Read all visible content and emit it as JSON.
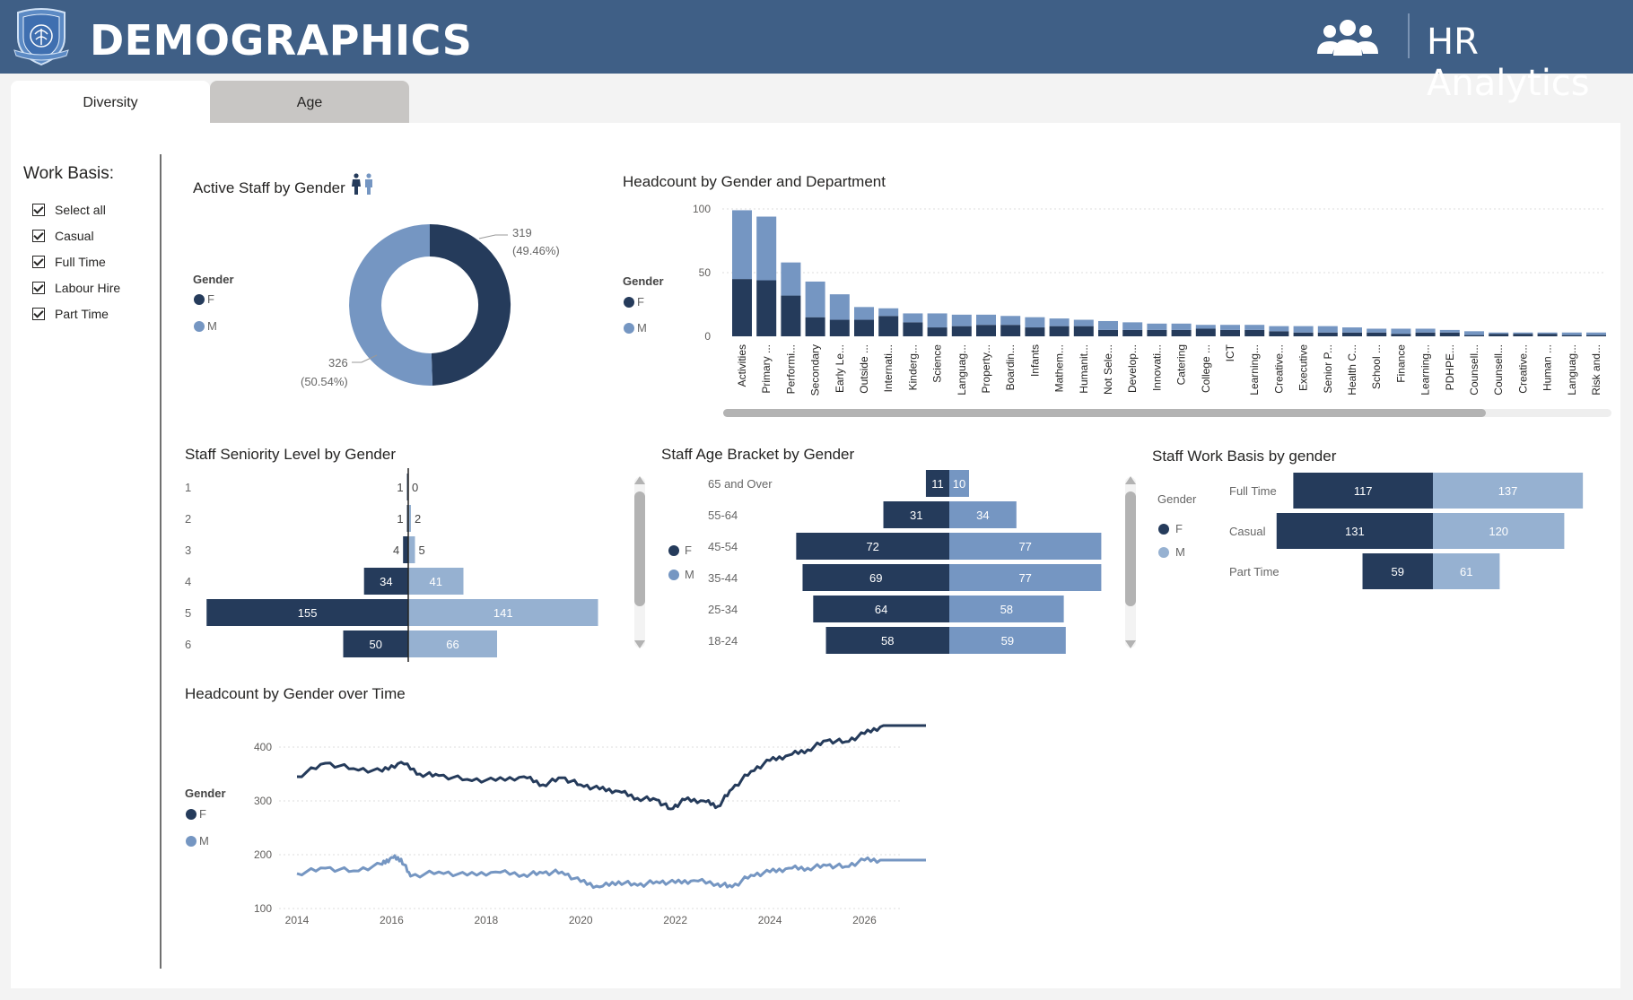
{
  "header": {
    "title": "DEMOGRAPHICS",
    "subtitle": "HR Analytics",
    "brand_color": "#3f5f86",
    "logo_icon": "school-crest-icon",
    "people_icon": "people-group-icon"
  },
  "tabs": [
    {
      "label": "Diversity",
      "active": true
    },
    {
      "label": "Age",
      "active": false
    }
  ],
  "slicer": {
    "title": "Work Basis:",
    "items": [
      {
        "label": "Select all",
        "checked": true
      },
      {
        "label": "Casual",
        "checked": true
      },
      {
        "label": "Full Time",
        "checked": true
      },
      {
        "label": "Labour Hire",
        "checked": true
      },
      {
        "label": "Part Time",
        "checked": true
      }
    ]
  },
  "colors": {
    "F": "#253b5b",
    "M": "#7596c2",
    "M_light": "#96b1d1"
  },
  "legend": {
    "title": "Gender",
    "f": "F",
    "m": "M"
  },
  "chart_data": [
    {
      "id": "donut",
      "type": "pie",
      "title": "Active Staff by Gender",
      "slices": [
        {
          "name": "F",
          "value": 319,
          "label": "319",
          "pct": "(49.46%)"
        },
        {
          "name": "M",
          "value": 326,
          "label": "326",
          "pct": "(50.54%)"
        }
      ]
    },
    {
      "id": "dept",
      "type": "bar",
      "title": "Headcount by Gender and Department",
      "ylim": [
        0,
        100
      ],
      "yticks": [
        "100",
        "50",
        "0"
      ],
      "categories": [
        "Activities",
        "Primary ...",
        "Performi...",
        "Secondary",
        "Early Le...",
        "Outside ...",
        "Internati...",
        "Kinderg...",
        "Science",
        "Languag...",
        "Property...",
        "Boardin...",
        "Infants",
        "Mathem...",
        "Humanit...",
        "Not Sele...",
        "Develop...",
        "Innovati...",
        "Catering",
        "College ...",
        "ICT",
        "Learning...",
        "Creative...",
        "Executive",
        "Senior P...",
        "Health C...",
        "School ...",
        "Finance",
        "Learning...",
        "PDHPE...",
        "Counsell...",
        "Counsell...",
        "Creative...",
        "Human ...",
        "Languag...",
        "Risk and..."
      ],
      "series": [
        {
          "name": "F",
          "values": [
            45,
            44,
            32,
            15,
            13,
            13,
            16,
            11,
            7,
            8,
            9,
            9,
            7,
            8,
            8,
            5,
            5,
            5,
            5,
            6,
            5,
            5,
            4,
            3,
            3,
            3,
            3,
            2,
            3,
            3,
            1,
            2,
            2,
            2,
            1,
            1
          ]
        },
        {
          "name": "M",
          "values": [
            54,
            50,
            26,
            28,
            20,
            10,
            6,
            7,
            11,
            9,
            8,
            7,
            8,
            6,
            5,
            7,
            6,
            5,
            5,
            3,
            4,
            4,
            4,
            5,
            5,
            4,
            3,
            4,
            3,
            2,
            3,
            1,
            1,
            1,
            2,
            2
          ]
        }
      ]
    },
    {
      "id": "seniority",
      "type": "bar",
      "title": "Staff Seniority Level by Gender",
      "categories": [
        "1",
        "2",
        "3",
        "4",
        "5",
        "6"
      ],
      "series": [
        {
          "name": "F",
          "values": [
            1,
            1,
            4,
            34,
            155,
            50
          ]
        },
        {
          "name": "M",
          "values": [
            0,
            2,
            5,
            41,
            141,
            66
          ]
        }
      ]
    },
    {
      "id": "age",
      "type": "bar",
      "title": "Staff Age Bracket by Gender",
      "categories": [
        "65 and Over",
        "55-64",
        "45-54",
        "35-44",
        "25-34",
        "18-24"
      ],
      "series": [
        {
          "name": "F",
          "values": [
            11,
            31,
            72,
            69,
            64,
            58
          ]
        },
        {
          "name": "M",
          "values": [
            10,
            34,
            77,
            77,
            58,
            59
          ]
        }
      ]
    },
    {
      "id": "workbasis",
      "type": "bar",
      "title": "Staff Work Basis by gender",
      "categories": [
        "Full Time",
        "Casual",
        "Part Time"
      ],
      "series": [
        {
          "name": "F",
          "values": [
            117,
            131,
            59
          ]
        },
        {
          "name": "M",
          "values": [
            137,
            120,
            61
          ]
        }
      ]
    },
    {
      "id": "timeline",
      "type": "line",
      "title": "Headcount by Gender over Time",
      "xticks": [
        "2014",
        "2016",
        "2018",
        "2020",
        "2022",
        "2024",
        "2026"
      ],
      "yticks": [
        "400",
        "300",
        "200",
        "100"
      ],
      "ylim": [
        100,
        400
      ],
      "series": [
        {
          "name": "F",
          "points": [
            [
              2014.0,
              345
            ],
            [
              2014.6,
              370
            ],
            [
              2015.2,
              360
            ],
            [
              2015.8,
              355
            ],
            [
              2016.2,
              372
            ],
            [
              2016.6,
              350
            ],
            [
              2017.0,
              347
            ],
            [
              2017.6,
              340
            ],
            [
              2018.2,
              338
            ],
            [
              2018.8,
              345
            ],
            [
              2019.2,
              330
            ],
            [
              2019.6,
              343
            ],
            [
              2020.0,
              330
            ],
            [
              2020.4,
              322
            ],
            [
              2020.8,
              318
            ],
            [
              2021.2,
              305
            ],
            [
              2021.6,
              302
            ],
            [
              2021.9,
              285
            ],
            [
              2022.2,
              302
            ],
            [
              2022.6,
              300
            ],
            [
              2022.9,
              290
            ],
            [
              2023.2,
              322
            ],
            [
              2023.6,
              355
            ],
            [
              2024.0,
              375
            ],
            [
              2024.4,
              385
            ],
            [
              2024.8,
              395
            ],
            [
              2025.2,
              412
            ],
            [
              2025.6,
              410
            ],
            [
              2026.0,
              425
            ],
            [
              2026.4,
              440
            ],
            [
              2027.3,
              440
            ]
          ]
        },
        {
          "name": "M",
          "points": [
            [
              2014.0,
              165
            ],
            [
              2014.6,
              175
            ],
            [
              2015.2,
              170
            ],
            [
              2015.8,
              182
            ],
            [
              2016.0,
              195
            ],
            [
              2016.2,
              192
            ],
            [
              2016.4,
              160
            ],
            [
              2017.0,
              168
            ],
            [
              2017.6,
              162
            ],
            [
              2018.2,
              168
            ],
            [
              2018.8,
              163
            ],
            [
              2019.2,
              166
            ],
            [
              2019.6,
              168
            ],
            [
              2020.0,
              150
            ],
            [
              2020.4,
              140
            ],
            [
              2020.8,
              150
            ],
            [
              2021.2,
              143
            ],
            [
              2021.6,
              150
            ],
            [
              2022.0,
              148
            ],
            [
              2022.4,
              152
            ],
            [
              2022.9,
              146
            ],
            [
              2023.2,
              140
            ],
            [
              2023.6,
              162
            ],
            [
              2024.0,
              168
            ],
            [
              2024.4,
              175
            ],
            [
              2024.8,
              175
            ],
            [
              2025.2,
              180
            ],
            [
              2025.6,
              178
            ],
            [
              2026.0,
              190
            ],
            [
              2026.4,
              190
            ],
            [
              2027.3,
              190
            ]
          ]
        }
      ]
    }
  ]
}
